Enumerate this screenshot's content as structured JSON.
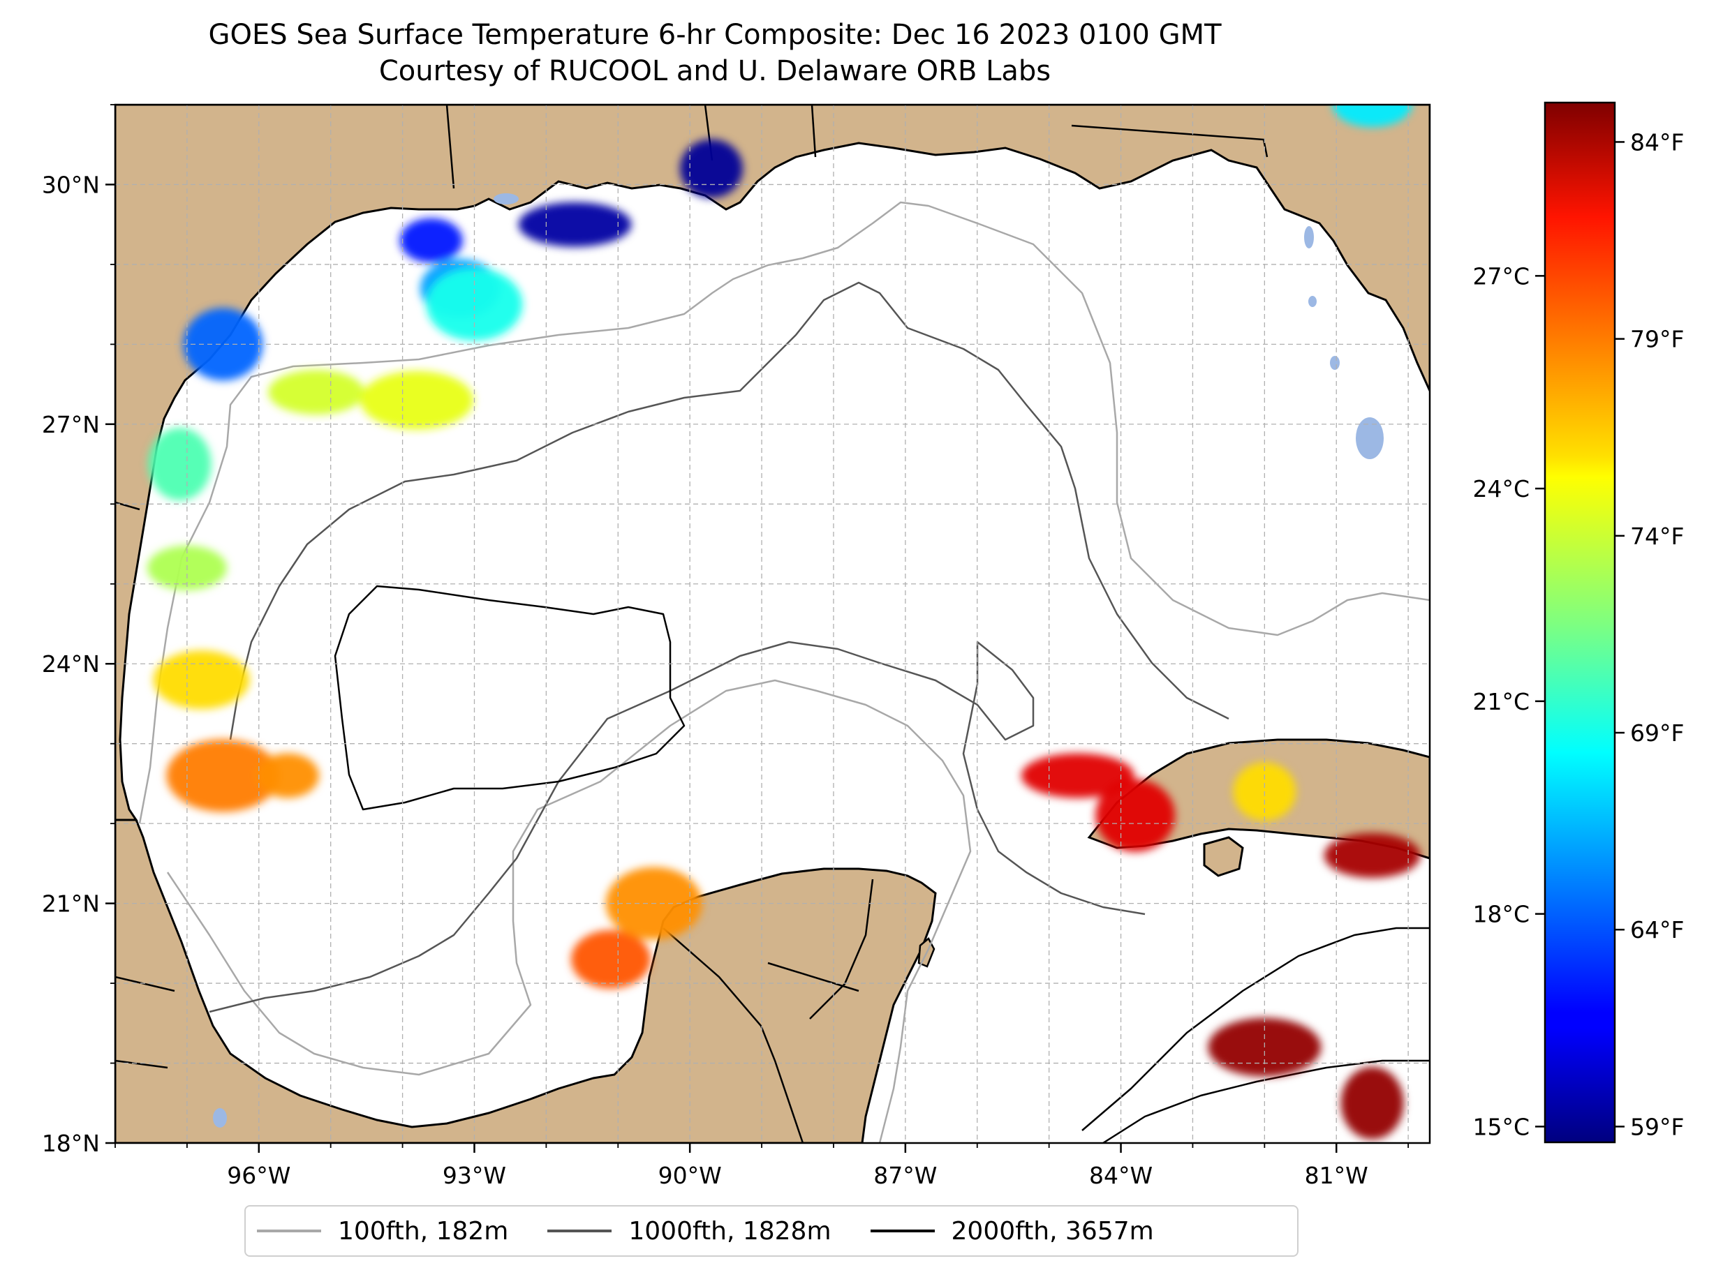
{
  "title": {
    "line1": "GOES Sea Surface Temperature 6-hr Composite: Dec 16 2023 0100 GMT",
    "line2": "Courtesy of RUCOOL and U. Delaware ORB Labs"
  },
  "map": {
    "lon_range": [
      -98.0,
      -79.7
    ],
    "lat_range": [
      18.0,
      31.0
    ],
    "lon_ticks": [
      {
        "value": -96,
        "label": "96°W"
      },
      {
        "value": -93,
        "label": "93°W"
      },
      {
        "value": -90,
        "label": "90°W"
      },
      {
        "value": -87,
        "label": "87°W"
      },
      {
        "value": -84,
        "label": "84°W"
      },
      {
        "value": -81,
        "label": "81°W"
      }
    ],
    "lat_ticks": [
      {
        "value": 18,
        "label": "18°N"
      },
      {
        "value": 21,
        "label": "21°N"
      },
      {
        "value": 24,
        "label": "24°N"
      },
      {
        "value": 27,
        "label": "27°N"
      },
      {
        "value": 30,
        "label": "30°N"
      }
    ],
    "grid": true,
    "colors": {
      "land": "#d2b48c",
      "water": "#ffffff",
      "inland_water": "#9cb8e4",
      "grid": "#b0b0b0"
    }
  },
  "colorbar": {
    "colormap": "jet",
    "range_f": [
      58.6,
      85.0
    ],
    "fahrenheit_ticks": [
      {
        "value": 59,
        "label": "59°F"
      },
      {
        "value": 64,
        "label": "64°F"
      },
      {
        "value": 69,
        "label": "69°F"
      },
      {
        "value": 74,
        "label": "74°F"
      },
      {
        "value": 79,
        "label": "79°F"
      },
      {
        "value": 84,
        "label": "84°F"
      }
    ],
    "celsius_ticks": [
      {
        "value": 15,
        "label": "15°C"
      },
      {
        "value": 18,
        "label": "18°C"
      },
      {
        "value": 21,
        "label": "21°C"
      },
      {
        "value": 24,
        "label": "24°C"
      },
      {
        "value": 27,
        "label": "27°C"
      }
    ]
  },
  "legend": {
    "items": [
      {
        "label": "100fth, 182m",
        "color": "#a8a8a8"
      },
      {
        "label": "1000fth, 1828m",
        "color": "#555555"
      },
      {
        "label": "2000fth, 3657m",
        "color": "#000000"
      }
    ]
  },
  "sst_patches": [
    {
      "lat": 29.3,
      "lon": -93.6,
      "temp_f": 62.5
    },
    {
      "lat": 28.7,
      "lon": -93.2,
      "temp_f": 66
    },
    {
      "lat": 28.5,
      "lon": -93.0,
      "temp_f": 69
    },
    {
      "lat": 29.5,
      "lon": -91.6,
      "temp_f": 59.5
    },
    {
      "lat": 30.2,
      "lon": -89.7,
      "temp_f": 59.2
    },
    {
      "lat": 28.0,
      "lon": -96.5,
      "temp_f": 64.5
    },
    {
      "lat": 27.4,
      "lon": -95.2,
      "temp_f": 74
    },
    {
      "lat": 27.3,
      "lon": -93.8,
      "temp_f": 74.5
    },
    {
      "lat": 26.5,
      "lon": -97.1,
      "temp_f": 70.5
    },
    {
      "lat": 25.2,
      "lon": -97.0,
      "temp_f": 73
    },
    {
      "lat": 23.8,
      "lon": -96.8,
      "temp_f": 76
    },
    {
      "lat": 22.6,
      "lon": -96.5,
      "temp_f": 78.5
    },
    {
      "lat": 22.6,
      "lon": -95.6,
      "temp_f": 78
    },
    {
      "lat": 20.3,
      "lon": -91.1,
      "temp_f": 79.5
    },
    {
      "lat": 21.0,
      "lon": -90.5,
      "temp_f": 78
    },
    {
      "lat": 22.6,
      "lon": -84.6,
      "temp_f": 82.5
    },
    {
      "lat": 22.4,
      "lon": -82.0,
      "temp_f": 76
    },
    {
      "lat": 22.1,
      "lon": -83.8,
      "temp_f": 82.5
    },
    {
      "lat": 21.6,
      "lon": -80.5,
      "temp_f": 84
    },
    {
      "lat": 19.2,
      "lon": -82.0,
      "temp_f": 84.5
    },
    {
      "lat": 18.5,
      "lon": -80.5,
      "temp_f": 84.5
    },
    {
      "lat": 31.0,
      "lon": -80.5,
      "temp_f": 68
    }
  ]
}
